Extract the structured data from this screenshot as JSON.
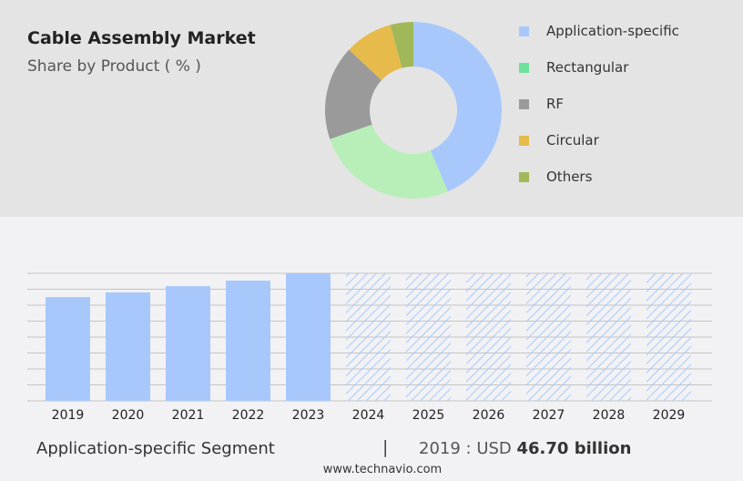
{
  "header": {
    "title": "Cable Assembly Market",
    "subtitle": "Share by Product ( % )"
  },
  "chart_data": [
    {
      "type": "pie",
      "donut": true,
      "series": [
        {
          "name": "Application-specific",
          "value": 43.6,
          "color": "#a8c8fc"
        },
        {
          "name": "Rectangular",
          "value": 26.1,
          "color": "#b8eeb8",
          "legend_color": "#6ee19a"
        },
        {
          "name": "RF",
          "value": 17.3,
          "color": "#9a9a9a"
        },
        {
          "name": "Circular",
          "value": 8.8,
          "color": "#e6bb4c"
        },
        {
          "name": "Others",
          "value": 4.2,
          "color": "#a0b858"
        }
      ]
    },
    {
      "type": "bar",
      "categories": [
        "2019",
        "2020",
        "2021",
        "2022",
        "2023",
        "2024",
        "2025",
        "2026",
        "2027",
        "2028",
        "2029"
      ],
      "values": [
        46.7,
        48.8,
        51.6,
        54.1,
        57.4,
        null,
        null,
        null,
        null,
        null,
        null
      ],
      "forecast": [
        false,
        false,
        false,
        false,
        false,
        true,
        true,
        true,
        true,
        true,
        true
      ],
      "ylim": [
        0,
        57.4
      ],
      "grid": true,
      "color": "#a8c8fc"
    }
  ],
  "footer": {
    "segment": "Application-specific Segment",
    "separator": "|",
    "year_value": "2019 : USD ",
    "value_bold": "46.70 billion",
    "site": "www.technavio.com"
  }
}
